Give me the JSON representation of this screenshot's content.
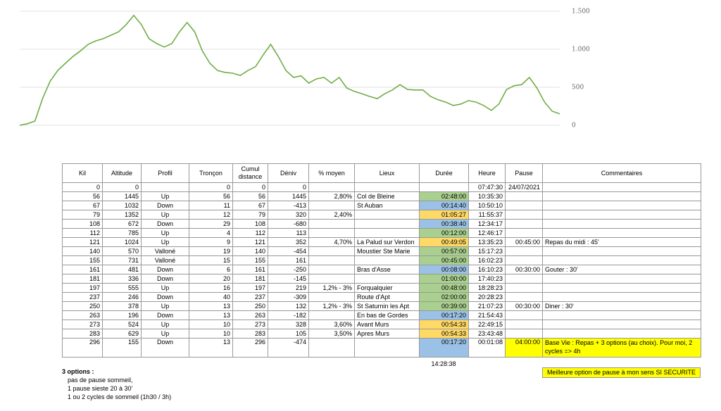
{
  "chart_data": {
    "type": "line",
    "color": "#70ad47",
    "values": [
      0,
      20,
      55,
      350,
      580,
      720,
      815,
      905,
      980,
      1065,
      1110,
      1140,
      1185,
      1230,
      1325,
      1445,
      1325,
      1140,
      1075,
      1030,
      1075,
      1230,
      1352,
      1230,
      980,
      815,
      720,
      695,
      685,
      655,
      720,
      770,
      925,
      1065,
      905,
      720,
      630,
      650,
      555,
      610,
      630,
      555,
      630,
      490,
      445,
      415,
      380,
      350,
      415,
      465,
      535,
      470,
      465,
      465,
      380,
      335,
      305,
      260,
      280,
      325,
      305,
      260,
      195,
      280,
      470,
      520,
      535,
      630,
      490,
      305,
      185,
      150
    ],
    "ylim": [
      0,
      1500
    ],
    "yticks": [
      0,
      500,
      {
        "value": 1000,
        "label": "1.000"
      },
      {
        "value": 1500,
        "label": "1.500"
      }
    ],
    "grid": true
  },
  "table": {
    "headers": [
      "Kil",
      "Altitude",
      "Profil",
      "Tronçon",
      "Cumul distance",
      "Déniv",
      "% moyen",
      "Lieux",
      "Durée",
      "Heure",
      "Pause",
      "Commentaires"
    ],
    "rows": [
      [
        "0",
        "0",
        "",
        "0",
        "0",
        "0",
        "",
        "",
        "",
        "07:47:30",
        "24/07/2021",
        ""
      ],
      [
        "56",
        "1445",
        "Up",
        "56",
        "56",
        "1445",
        "2,80%",
        "Col de Bleine",
        "02:48:00",
        "10:35:30",
        "",
        ""
      ],
      [
        "67",
        "1032",
        "Down",
        "11",
        "67",
        "-413",
        "",
        "St Auban",
        "00:14:40",
        "10:50:10",
        "",
        ""
      ],
      [
        "79",
        "1352",
        "Up",
        "12",
        "79",
        "320",
        "2,40%",
        "",
        "01:05:27",
        "11:55:37",
        "",
        ""
      ],
      [
        "108",
        "672",
        "Down",
        "29",
        "108",
        "-680",
        "",
        "",
        "00:38:40",
        "12:34:17",
        "",
        ""
      ],
      [
        "112",
        "785",
        "Up",
        "4",
        "112",
        "113",
        "",
        "",
        "00:12:00",
        "12:46:17",
        "",
        ""
      ],
      [
        "121",
        "1024",
        "Up",
        "9",
        "121",
        "352",
        "4,70%",
        "La Palud sur Verdon",
        "00:49:05",
        "13:35:23",
        "00:45:00",
        "Repas du midi : 45'"
      ],
      [
        "140",
        "570",
        "Valloné",
        "19",
        "140",
        "-454",
        "",
        "Moustier Ste Marie",
        "00:57:00",
        "15:17:23",
        "",
        ""
      ],
      [
        "155",
        "731",
        "Valloné",
        "15",
        "155",
        "161",
        "",
        "",
        "00:45:00",
        "16:02:23",
        "",
        ""
      ],
      [
        "161",
        "481",
        "Down",
        "6",
        "161",
        "-250",
        "",
        "Bras d'Asse",
        "00:08:00",
        "16:10:23",
        "00:30:00",
        "Gouter : 30'"
      ],
      [
        "181",
        "336",
        "Down",
        "20",
        "181",
        "-145",
        "",
        "",
        "01:00:00",
        "17:40:23",
        "",
        ""
      ],
      [
        "197",
        "555",
        "Up",
        "16",
        "197",
        "219",
        "1,2% - 3%",
        "Forqualquier",
        "00:48:00",
        "18:28:23",
        "",
        ""
      ],
      [
        "237",
        "246",
        "Down",
        "40",
        "237",
        "-309",
        "",
        "Route d'Apt",
        "02:00:00",
        "20:28:23",
        "",
        ""
      ],
      [
        "250",
        "378",
        "Up",
        "13",
        "250",
        "132",
        "1,2% - 3%",
        "St Saturnin les Apt",
        "00:39:00",
        "21:07:23",
        "00:30:00",
        "Diner : 30'"
      ],
      [
        "263",
        "196",
        "Down",
        "13",
        "263",
        "-182",
        "",
        "En bas de Gordes",
        "00:17:20",
        "21:54:43",
        "",
        ""
      ],
      [
        "273",
        "524",
        "Up",
        "10",
        "273",
        "328",
        "3,60%",
        "Avant Murs",
        "00:54:33",
        "22:49:15",
        "",
        ""
      ],
      [
        "283",
        "629",
        "Up",
        "10",
        "283",
        "105",
        "3,50%",
        "Apres Murs",
        "00:54:33",
        "23:43:48",
        "",
        ""
      ],
      [
        "296",
        "155",
        "Down",
        "13",
        "296",
        "-474",
        "",
        "",
        "00:17:20",
        "00:01:08",
        "04:00:00",
        "Base Vie : Repas + 3 options (au choix). Pour moi, 2 cycles => 4h"
      ]
    ],
    "duree_colors": [
      null,
      "#a9d08e",
      "#9bc2e6",
      "#ffd966",
      "#9bc2e6",
      "#a9d08e",
      "#ffd966",
      "#a9d08e",
      "#a9d08e",
      "#9bc2e6",
      "#a9d08e",
      "#a9d08e",
      "#a9d08e",
      "#a9d08e",
      "#9bc2e6",
      "#ffd966",
      "#ffd966",
      "#9bc2e6"
    ],
    "highlight_color": "#ffff00",
    "total_duree": "14:28:38"
  },
  "note": "Meilleure option de pause à mon sens SI SECURITE",
  "options": {
    "title": "3 options :",
    "items": [
      "pas de pause sommeil,",
      "1 pause sieste 20 à 30'",
      "1 ou 2 cycles de sommeil (1h30 / 3h)"
    ]
  }
}
